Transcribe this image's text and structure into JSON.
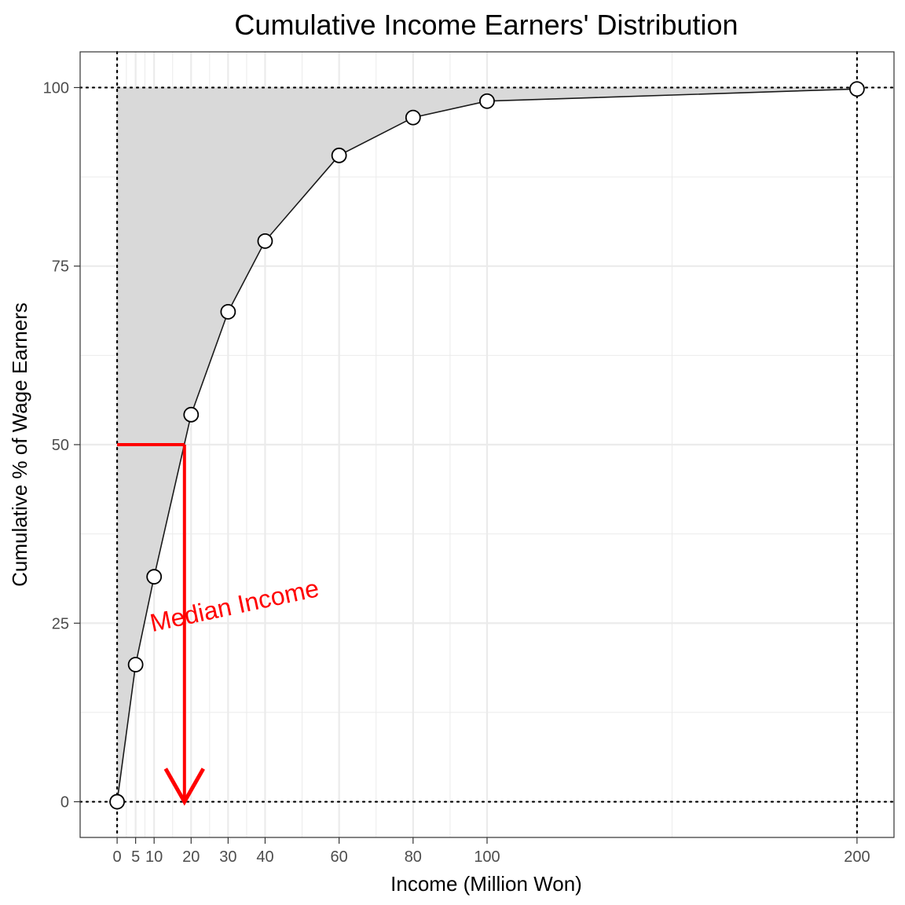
{
  "chart_data": {
    "type": "area",
    "title": "Cumulative Income Earners' Distribution",
    "xlabel": "Income (Million Won)",
    "ylabel": "Cumulative % of Wage Earners",
    "xlim": [
      -10,
      210
    ],
    "ylim": [
      -5,
      105
    ],
    "x_ticks": [
      0,
      5,
      10,
      20,
      30,
      40,
      60,
      80,
      100,
      200
    ],
    "y_ticks": [
      0,
      25,
      50,
      75,
      100
    ],
    "x_minor_gridlines": [
      2.5,
      7.5,
      15,
      25,
      35,
      50,
      70,
      90,
      150
    ],
    "y_minor_gridlines": [
      12.5,
      37.5,
      62.5,
      87.5
    ],
    "grid": true,
    "reference_lines": {
      "horizontal": [
        0,
        100
      ],
      "vertical": [
        0,
        200
      ]
    },
    "series": [
      {
        "x": [
          0,
          5,
          10,
          20,
          30,
          40,
          60,
          80,
          100,
          200
        ],
        "y": [
          0,
          19.2,
          31.5,
          54.2,
          68.6,
          78.5,
          90.5,
          95.8,
          98.1,
          99.8
        ]
      }
    ],
    "annotations": {
      "median": {
        "x": 18.2,
        "y": 50,
        "label": "Median Income",
        "color": "#ff0000"
      }
    },
    "colors": {
      "area_fill": "#d9d9d9",
      "line": "#1a1a1a",
      "grid": "#ebebeb",
      "marker_fill": "#ffffff"
    }
  }
}
